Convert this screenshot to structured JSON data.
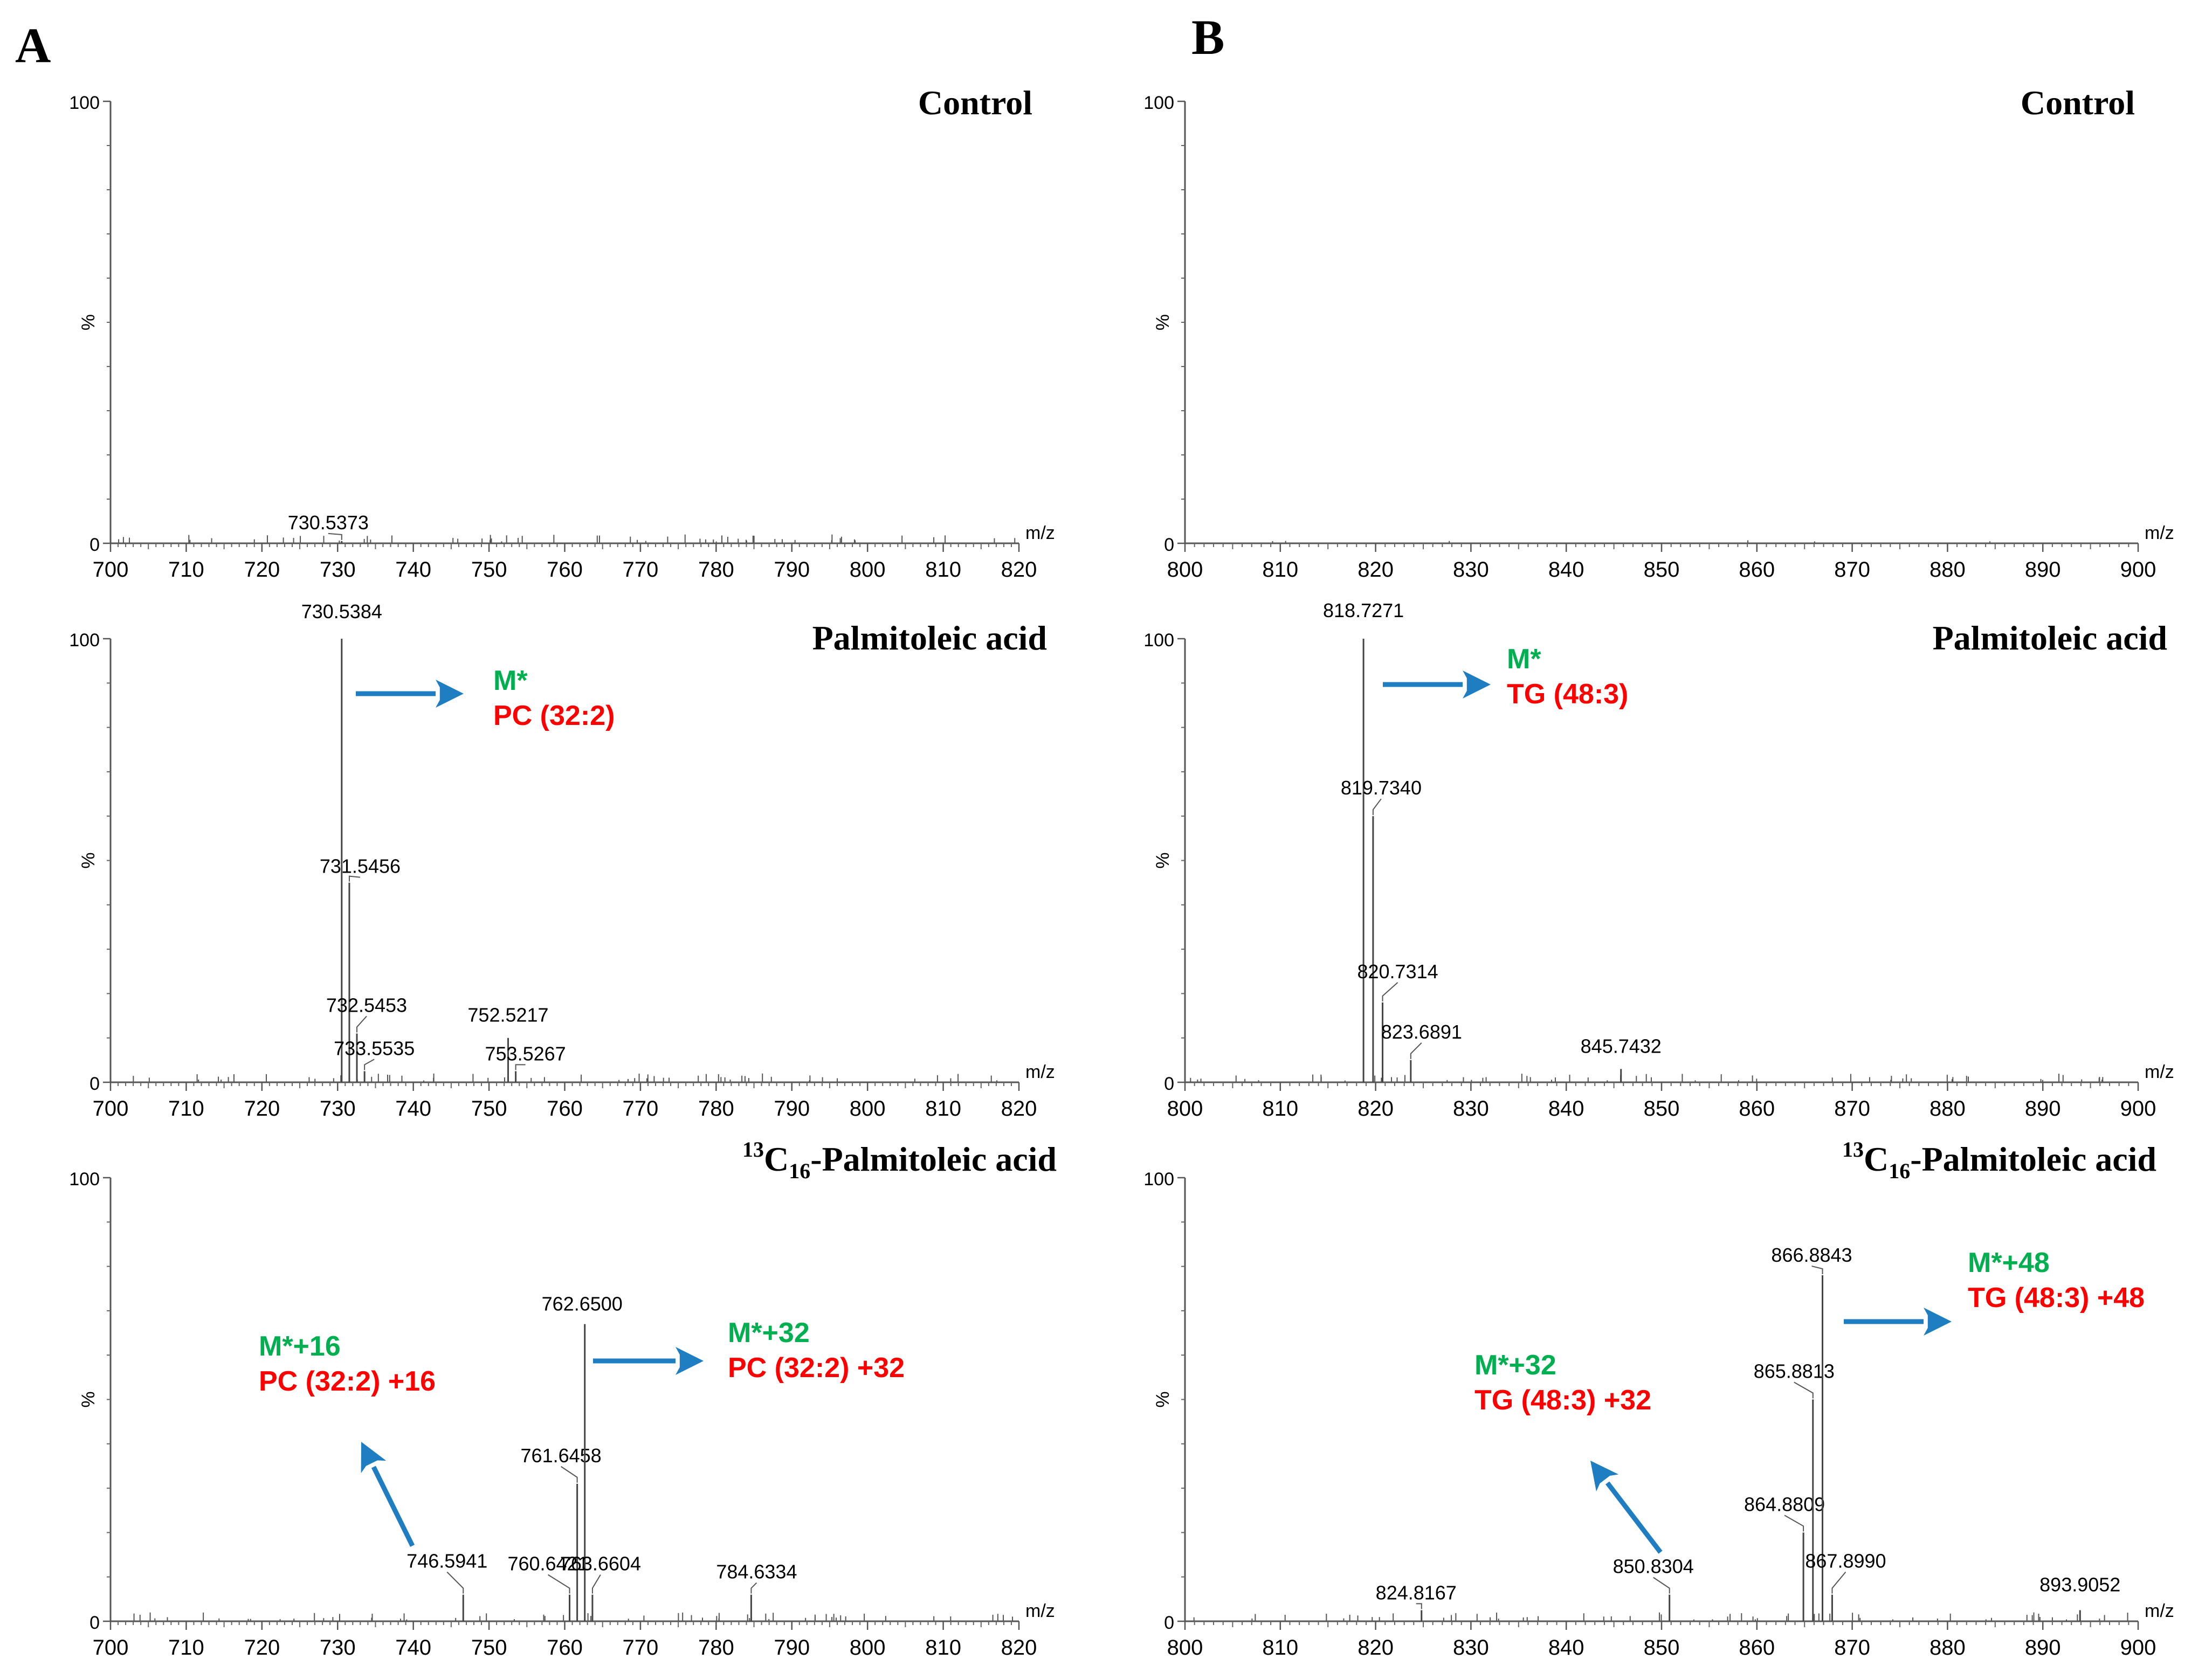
{
  "panel_letters": [
    "A",
    "B"
  ],
  "ann_colors": {
    "green": "#00b050",
    "red": "#ff0000",
    "arrow": "#1f7ec2"
  },
  "chart_data": [
    {
      "type": "bar",
      "panel": "A",
      "title": "Control",
      "xlabel": "m/z",
      "ylabel": "%",
      "xlim": [
        700,
        820
      ],
      "ylim": [
        0,
        100
      ],
      "xticks": [
        700,
        710,
        720,
        730,
        740,
        750,
        760,
        770,
        780,
        790,
        800,
        810,
        820
      ],
      "yticks": [
        0,
        100
      ],
      "peaks": [
        {
          "x": 730.5373,
          "y": 0.5,
          "label": "730.5373"
        }
      ],
      "annotations": []
    },
    {
      "type": "bar",
      "panel": "A",
      "title": "Palmitoleic acid",
      "xlabel": "m/z",
      "ylabel": "%",
      "xlim": [
        700,
        820
      ],
      "ylim": [
        0,
        100
      ],
      "xticks": [
        700,
        710,
        720,
        730,
        740,
        750,
        760,
        770,
        780,
        790,
        800,
        810,
        820
      ],
      "yticks": [
        0,
        100
      ],
      "peaks": [
        {
          "x": 730.5384,
          "y": 100,
          "label": "730.5384"
        },
        {
          "x": 731.5456,
          "y": 45,
          "label": "731.5456"
        },
        {
          "x": 732.5453,
          "y": 11,
          "label": "732.5453"
        },
        {
          "x": 733.5535,
          "y": 2.5,
          "label": "733.5535"
        },
        {
          "x": 752.5217,
          "y": 10,
          "label": "752.5217"
        },
        {
          "x": 753.5267,
          "y": 2.5,
          "label": "753.5267"
        }
      ],
      "annotations": [
        {
          "green": "M*",
          "red": "PC (32:2)",
          "arrow": "right"
        }
      ]
    },
    {
      "type": "bar",
      "panel": "A",
      "title_sup": "13",
      "title_sub": "16",
      "title_pre": "C",
      "title": "-Palmitoleic acid",
      "xlabel": "m/z",
      "ylabel": "%",
      "xlim": [
        700,
        820
      ],
      "ylim": [
        0,
        100
      ],
      "xticks": [
        700,
        710,
        720,
        730,
        740,
        750,
        760,
        770,
        780,
        790,
        800,
        810,
        820
      ],
      "yticks": [
        0,
        100
      ],
      "peaks": [
        {
          "x": 746.5941,
          "y": 6,
          "label": "746.5941"
        },
        {
          "x": 760.6421,
          "y": 6,
          "label": "760.6421"
        },
        {
          "x": 761.6458,
          "y": 31,
          "label": "761.6458"
        },
        {
          "x": 762.65,
          "y": 67,
          "label": "762.6500"
        },
        {
          "x": 763.6604,
          "y": 6,
          "label": "763.6604"
        },
        {
          "x": 784.6334,
          "y": 6,
          "label": "784.6334"
        }
      ],
      "annotations": [
        {
          "green": "M*+16",
          "red": "PC (32:2) +16",
          "arrow": "up-left"
        },
        {
          "green": "M*+32",
          "red": "PC (32:2) +32",
          "arrow": "right"
        }
      ]
    },
    {
      "type": "bar",
      "panel": "B",
      "title": "Control",
      "xlabel": "m/z",
      "ylabel": "%",
      "xlim": [
        800,
        900
      ],
      "ylim": [
        0,
        100
      ],
      "xticks": [
        800,
        810,
        820,
        830,
        840,
        850,
        860,
        870,
        880,
        890,
        900
      ],
      "yticks": [
        0,
        100
      ],
      "peaks": [],
      "annotations": []
    },
    {
      "type": "bar",
      "panel": "B",
      "title": "Palmitoleic acid",
      "xlabel": "m/z",
      "ylabel": "%",
      "xlim": [
        800,
        900
      ],
      "ylim": [
        0,
        100
      ],
      "xticks": [
        800,
        810,
        820,
        830,
        840,
        850,
        860,
        870,
        880,
        890,
        900
      ],
      "yticks": [
        0,
        100
      ],
      "peaks": [
        {
          "x": 818.7271,
          "y": 100,
          "label": "818.7271"
        },
        {
          "x": 819.734,
          "y": 60,
          "label": "819.7340"
        },
        {
          "x": 820.7314,
          "y": 18,
          "label": "820.7314"
        },
        {
          "x": 823.6891,
          "y": 5,
          "label": "823.6891"
        },
        {
          "x": 845.7432,
          "y": 3,
          "label": "845.7432"
        }
      ],
      "annotations": [
        {
          "green": "M*",
          "red": "TG (48:3)",
          "arrow": "right"
        }
      ]
    },
    {
      "type": "bar",
      "panel": "B",
      "title_sup": "13",
      "title_sub": "16",
      "title_pre": "C",
      "title": "-Palmitoleic acid",
      "xlabel": "m/z",
      "ylabel": "%",
      "xlim": [
        800,
        900
      ],
      "ylim": [
        0,
        100
      ],
      "xticks": [
        800,
        810,
        820,
        830,
        840,
        850,
        860,
        870,
        880,
        890,
        900
      ],
      "yticks": [
        0,
        100
      ],
      "peaks": [
        {
          "x": 824.8167,
          "y": 2.5,
          "label": "824.8167"
        },
        {
          "x": 850.8304,
          "y": 6,
          "label": "850.8304"
        },
        {
          "x": 864.8809,
          "y": 20,
          "label": "864.8809"
        },
        {
          "x": 865.8813,
          "y": 50,
          "label": "865.8813"
        },
        {
          "x": 866.8843,
          "y": 78,
          "label": "866.8843"
        },
        {
          "x": 867.899,
          "y": 6,
          "label": "867.8990"
        },
        {
          "x": 893.9052,
          "y": 2.5,
          "label": "893.9052"
        }
      ],
      "annotations": [
        {
          "green": "M*+32",
          "red": "TG (48:3) +32",
          "arrow": "up-left"
        },
        {
          "green": "M*+48",
          "red": "TG (48:3) +48",
          "arrow": "right"
        }
      ]
    }
  ]
}
